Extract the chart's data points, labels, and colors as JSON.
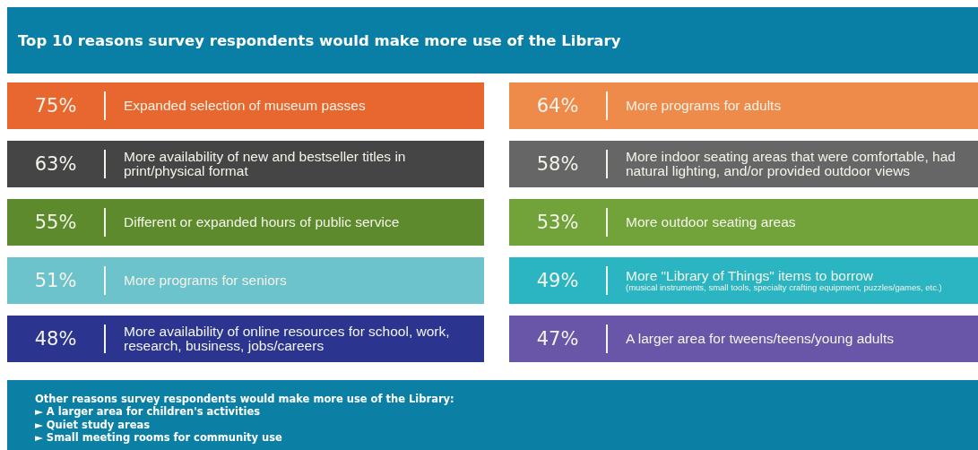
{
  "chart_data": {
    "type": "other",
    "title": "Top 10 reasons survey respondents would make more use of the Library",
    "categories": [
      "Expanded selection of museum passes",
      "More programs for adults",
      "More availability of new and bestseller titles in print/physical format",
      "More indoor seating areas that were comfortable, had natural lighting, and/or provided outdoor views",
      "Different or expanded hours of public service",
      "More outdoor seating areas",
      "More programs for seniors",
      "More \"Library of Things\" items to borrow\n(musical instruments, small tools, specialty crafting equipment, puzzles/games, etc.)",
      "More availability of online resources for school, work, research, business, jobs/careers",
      "A larger area for tweens/teens/young adults"
    ],
    "values": [
      75,
      64,
      63,
      58,
      55,
      53,
      51,
      49,
      48,
      47
    ],
    "value_labels": [
      "75%",
      "64%",
      "63%",
      "58%",
      "55%",
      "53%",
      "51%",
      "49%",
      "48%",
      "47%"
    ],
    "colors": [
      "#e8672f",
      "#ee8a4a",
      "#454545",
      "#666666",
      "#5e8a2e",
      "#72a23a",
      "#6cc3cb",
      "#2bb5c2",
      "#2b3590",
      "#6a56a8"
    ],
    "annotations": [
      "Other reasons survey respondents would make more use of the Library:",
      "► A larger area for children's activities",
      "► Quiet study areas",
      "► Small meeting rooms for community use"
    ]
  }
}
